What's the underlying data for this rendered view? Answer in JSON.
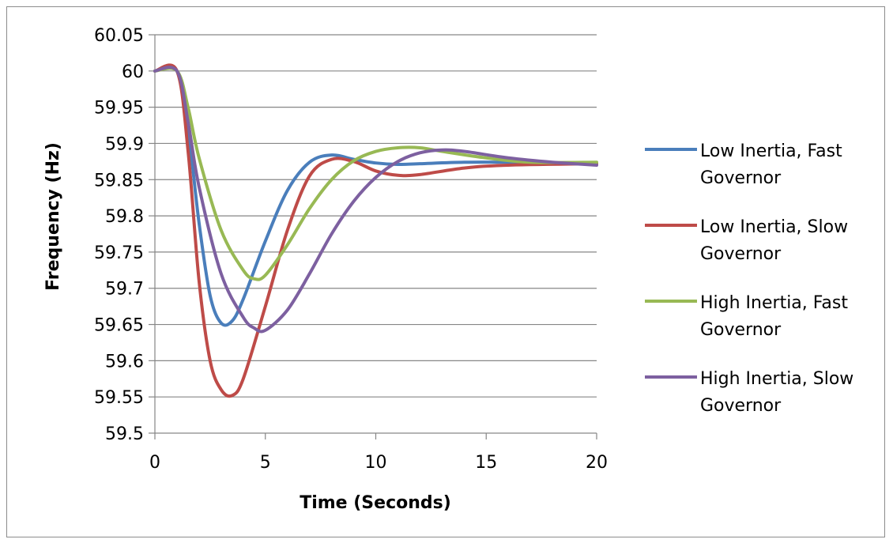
{
  "chart_data": {
    "type": "line",
    "title": "",
    "xlabel": "Time (Seconds)",
    "ylabel": "Frequency (Hz)",
    "xlim": [
      0,
      20
    ],
    "ylim": [
      59.5,
      60.05
    ],
    "xticks": [
      0,
      5,
      10,
      15,
      20
    ],
    "yticks": [
      59.5,
      59.55,
      59.6,
      59.65,
      59.7,
      59.75,
      59.8,
      59.85,
      59.9,
      59.95,
      60,
      60.05
    ],
    "ytick_labels": [
      "59.5",
      "59.55",
      "59.6",
      "59.65",
      "59.7",
      "59.75",
      "59.8",
      "59.85",
      "59.9",
      "59.95",
      "60",
      "60.05"
    ],
    "grid": "horizontal",
    "legend_position": "right",
    "series": [
      {
        "name_lines": [
          "Low Inertia, Fast",
          "Governor"
        ],
        "color": "#4a7ebb",
        "points": [
          [
            0,
            60
          ],
          [
            1,
            60
          ],
          [
            1.5,
            59.92
          ],
          [
            2,
            59.79
          ],
          [
            2.5,
            59.69
          ],
          [
            3,
            59.652
          ],
          [
            3.5,
            59.655
          ],
          [
            4,
            59.685
          ],
          [
            5,
            59.765
          ],
          [
            6,
            59.835
          ],
          [
            7,
            59.874
          ],
          [
            8,
            59.884
          ],
          [
            9,
            59.878
          ],
          [
            10,
            59.873
          ],
          [
            11,
            59.871
          ],
          [
            12,
            59.872
          ],
          [
            14,
            59.874
          ],
          [
            16,
            59.874
          ],
          [
            20,
            59.872
          ]
        ]
      },
      {
        "name_lines": [
          "Low Inertia, Slow",
          "Governor"
        ],
        "color": "#be4b48",
        "points": [
          [
            0,
            60
          ],
          [
            1,
            60
          ],
          [
            1.5,
            59.89
          ],
          [
            2,
            59.71
          ],
          [
            2.5,
            59.6
          ],
          [
            3,
            59.56
          ],
          [
            3.5,
            59.552
          ],
          [
            4,
            59.575
          ],
          [
            5,
            59.675
          ],
          [
            6,
            59.78
          ],
          [
            7,
            59.855
          ],
          [
            8,
            59.878
          ],
          [
            9,
            59.875
          ],
          [
            10,
            59.862
          ],
          [
            11,
            59.856
          ],
          [
            12,
            59.857
          ],
          [
            14,
            59.866
          ],
          [
            16,
            59.87
          ],
          [
            20,
            59.872
          ]
        ]
      },
      {
        "name_lines": [
          "High Inertia, Fast",
          "Governor"
        ],
        "color": "#98b954",
        "points": [
          [
            0,
            60
          ],
          [
            1,
            60
          ],
          [
            1.5,
            59.95
          ],
          [
            2,
            59.88
          ],
          [
            3,
            59.78
          ],
          [
            4,
            59.725
          ],
          [
            4.5,
            59.713
          ],
          [
            5,
            59.718
          ],
          [
            6,
            59.76
          ],
          [
            7,
            59.81
          ],
          [
            8,
            59.85
          ],
          [
            9,
            59.876
          ],
          [
            10,
            59.889
          ],
          [
            11,
            59.894
          ],
          [
            12,
            59.894
          ],
          [
            13,
            59.889
          ],
          [
            15,
            59.88
          ],
          [
            17,
            59.874
          ],
          [
            20,
            59.874
          ]
        ]
      },
      {
        "name_lines": [
          "High Inertia, Slow",
          "Governor"
        ],
        "color": "#7d60a0",
        "points": [
          [
            0,
            60
          ],
          [
            1,
            60
          ],
          [
            1.5,
            59.93
          ],
          [
            2,
            59.84
          ],
          [
            3,
            59.72
          ],
          [
            4,
            59.66
          ],
          [
            4.5,
            59.645
          ],
          [
            5,
            59.642
          ],
          [
            6,
            59.67
          ],
          [
            7,
            59.72
          ],
          [
            8,
            59.775
          ],
          [
            9,
            59.82
          ],
          [
            10,
            59.853
          ],
          [
            11,
            59.875
          ],
          [
            12,
            59.887
          ],
          [
            13,
            59.891
          ],
          [
            14,
            59.889
          ],
          [
            16,
            59.88
          ],
          [
            18,
            59.874
          ],
          [
            20,
            59.87
          ]
        ]
      }
    ]
  }
}
